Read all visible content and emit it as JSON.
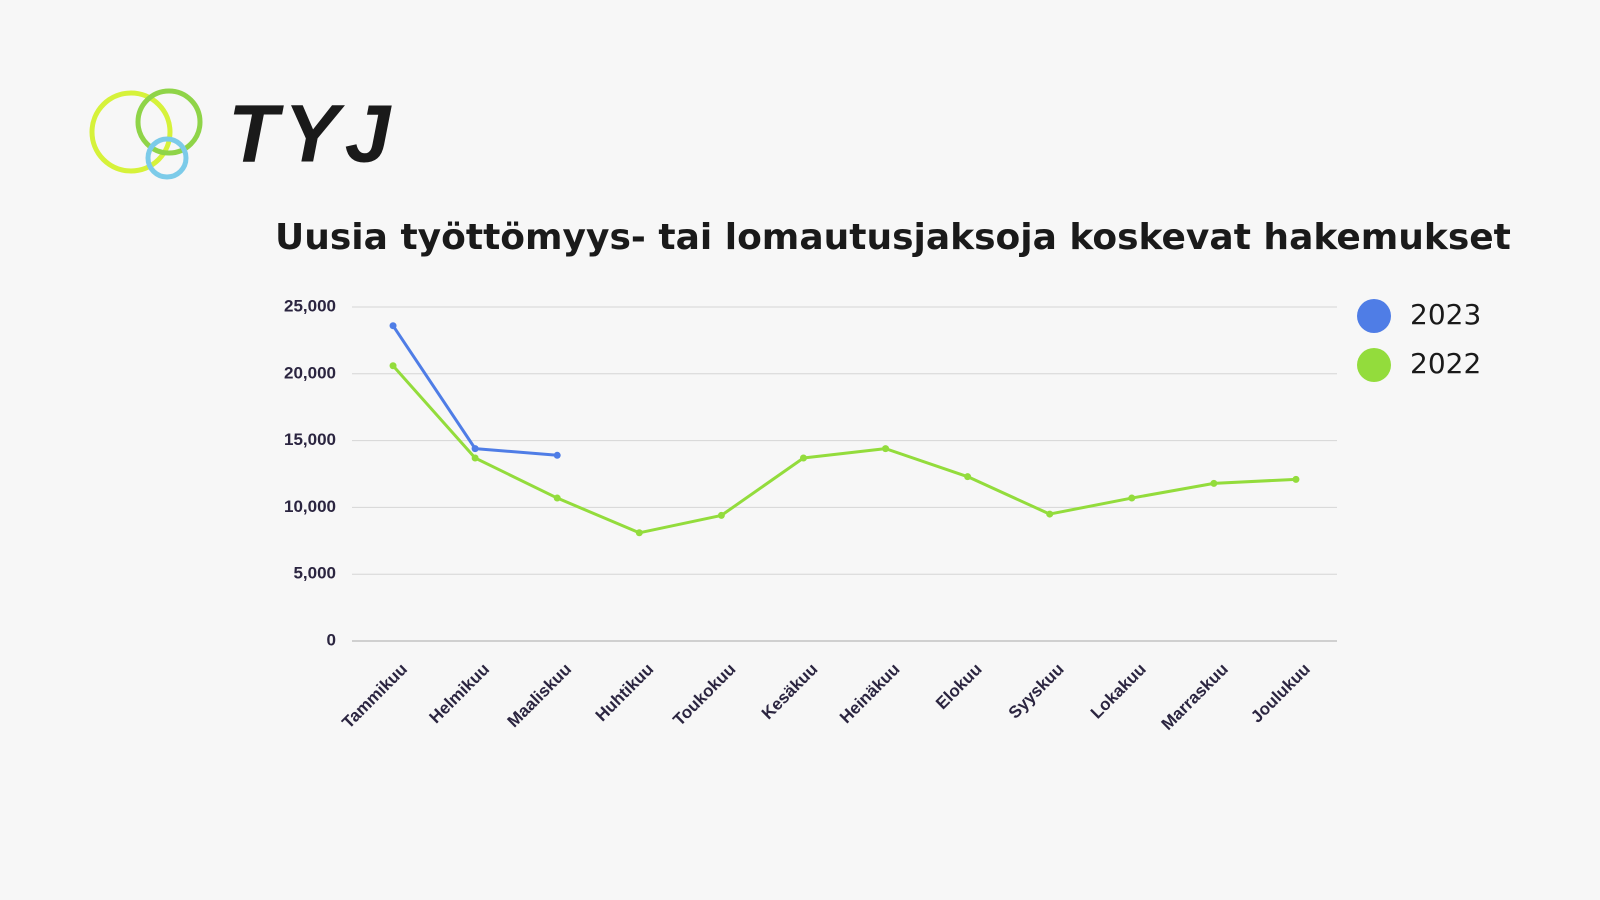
{
  "logo": {
    "text": "TYJ"
  },
  "chart_data": {
    "type": "line",
    "title": "Uusia työttömyys- tai lomautusjaksoja koskevat hakemukset",
    "categories": [
      "Tammikuu",
      "Helmikuu",
      "Maaliskuu",
      "Huhtikuu",
      "Toukokuu",
      "Kesäkuu",
      "Heinäkuu",
      "Elokuu",
      "Syyskuu",
      "Lokakuu",
      "Marraskuu",
      "Joulukuu"
    ],
    "series": [
      {
        "name": "2023",
        "color": "#4f7de6",
        "values": [
          23600,
          14400,
          13900,
          null,
          null,
          null,
          null,
          null,
          null,
          null,
          null,
          null
        ]
      },
      {
        "name": "2022",
        "color": "#93dc3c",
        "values": [
          20600,
          13700,
          10700,
          8100,
          9400,
          13700,
          14400,
          12300,
          9500,
          10700,
          11800,
          12100
        ]
      }
    ],
    "ylim": [
      0,
      25000
    ],
    "yticks": [
      0,
      {
        "value": 5000,
        "label": "5,000"
      },
      {
        "value": 10000,
        "label": "10,000"
      },
      {
        "value": 15000,
        "label": "15,000"
      },
      {
        "value": 20000,
        "label": "20,000"
      },
      {
        "value": 25000,
        "label": "25,000"
      }
    ],
    "grid": true,
    "legend": "right"
  }
}
